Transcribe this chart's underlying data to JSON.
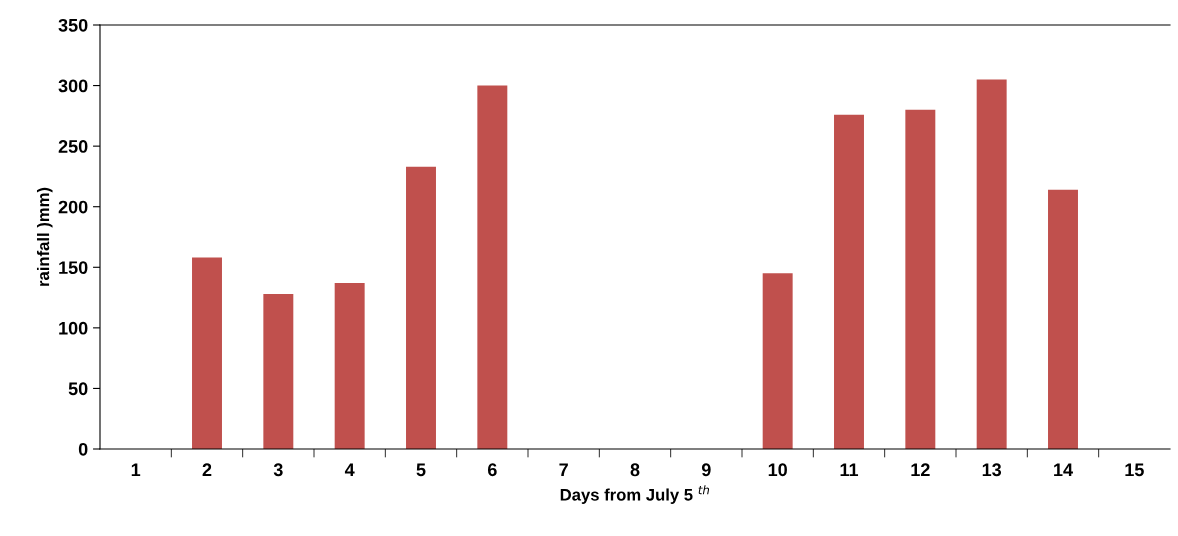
{
  "chart_data": {
    "type": "bar",
    "xlabel": "Days from July 5 $^{th}$",
    "ylabel": "rainfall )mm)",
    "categories": [
      "1",
      "2",
      "3",
      "4",
      "5",
      "6",
      "7",
      "8",
      "9",
      "10",
      "11",
      "12",
      "13",
      "14",
      "15"
    ],
    "values": [
      0,
      158,
      128,
      137,
      233,
      300,
      0,
      0,
      0,
      145,
      276,
      280,
      305,
      214,
      0
    ],
    "color": "#c0504d",
    "ylim": [
      0,
      350
    ],
    "yticks": [
      0,
      50,
      100,
      150,
      200,
      250,
      300,
      350
    ],
    "grid": false,
    "legend": false
  }
}
